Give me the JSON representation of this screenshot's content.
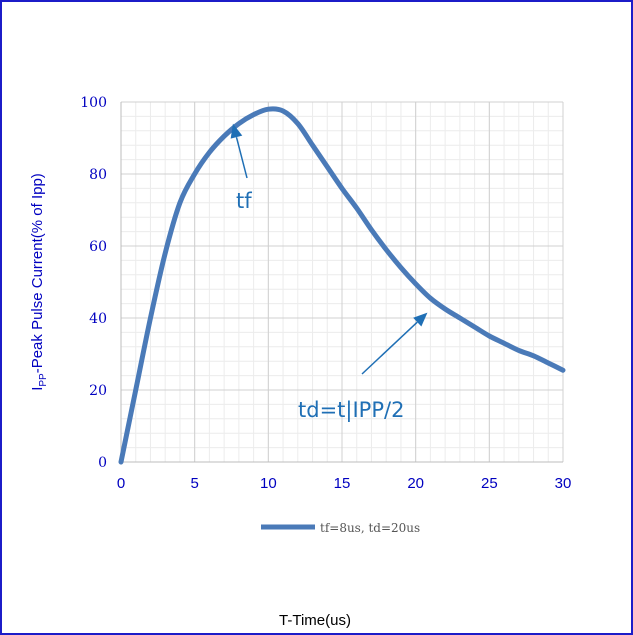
{
  "chart_data": {
    "type": "line",
    "ylabel_main": "I",
    "ylabel_sub": "PP",
    "ylabel_rest": "-Peak Pulse Current(% of Ipp)",
    "xlabel": "T-Time(us)",
    "xlim": [
      0,
      30
    ],
    "ylim": [
      0,
      100
    ],
    "xticks": [
      0,
      5,
      10,
      15,
      20,
      25,
      30
    ],
    "yticks": [
      0,
      20,
      40,
      60,
      80,
      100
    ],
    "grid": true,
    "legend_position": "bottom",
    "series": [
      {
        "name": "tf=8us, td=20us",
        "color": "#4a7ab8",
        "x": [
          0,
          1,
          2,
          3,
          4,
          5,
          6,
          7,
          8,
          9,
          10,
          11,
          12,
          13,
          14,
          15,
          16,
          17,
          18,
          19,
          20,
          21,
          22,
          23,
          24,
          25,
          26,
          27,
          28,
          29,
          30
        ],
        "y": [
          0,
          20,
          40,
          58,
          72,
          80,
          86,
          90.5,
          94,
          96.5,
          98,
          97.5,
          94,
          88,
          82,
          76,
          70.5,
          64.5,
          59,
          54,
          49.5,
          45.5,
          42.5,
          40,
          37.5,
          35,
          33,
          31,
          29.5,
          27.5,
          25.5
        ]
      }
    ],
    "annotations": [
      {
        "text": "tf",
        "target": [
          7.6,
          94
        ]
      },
      {
        "text": "td=t|IPP/2",
        "target": [
          20.8,
          41.5
        ]
      }
    ]
  }
}
